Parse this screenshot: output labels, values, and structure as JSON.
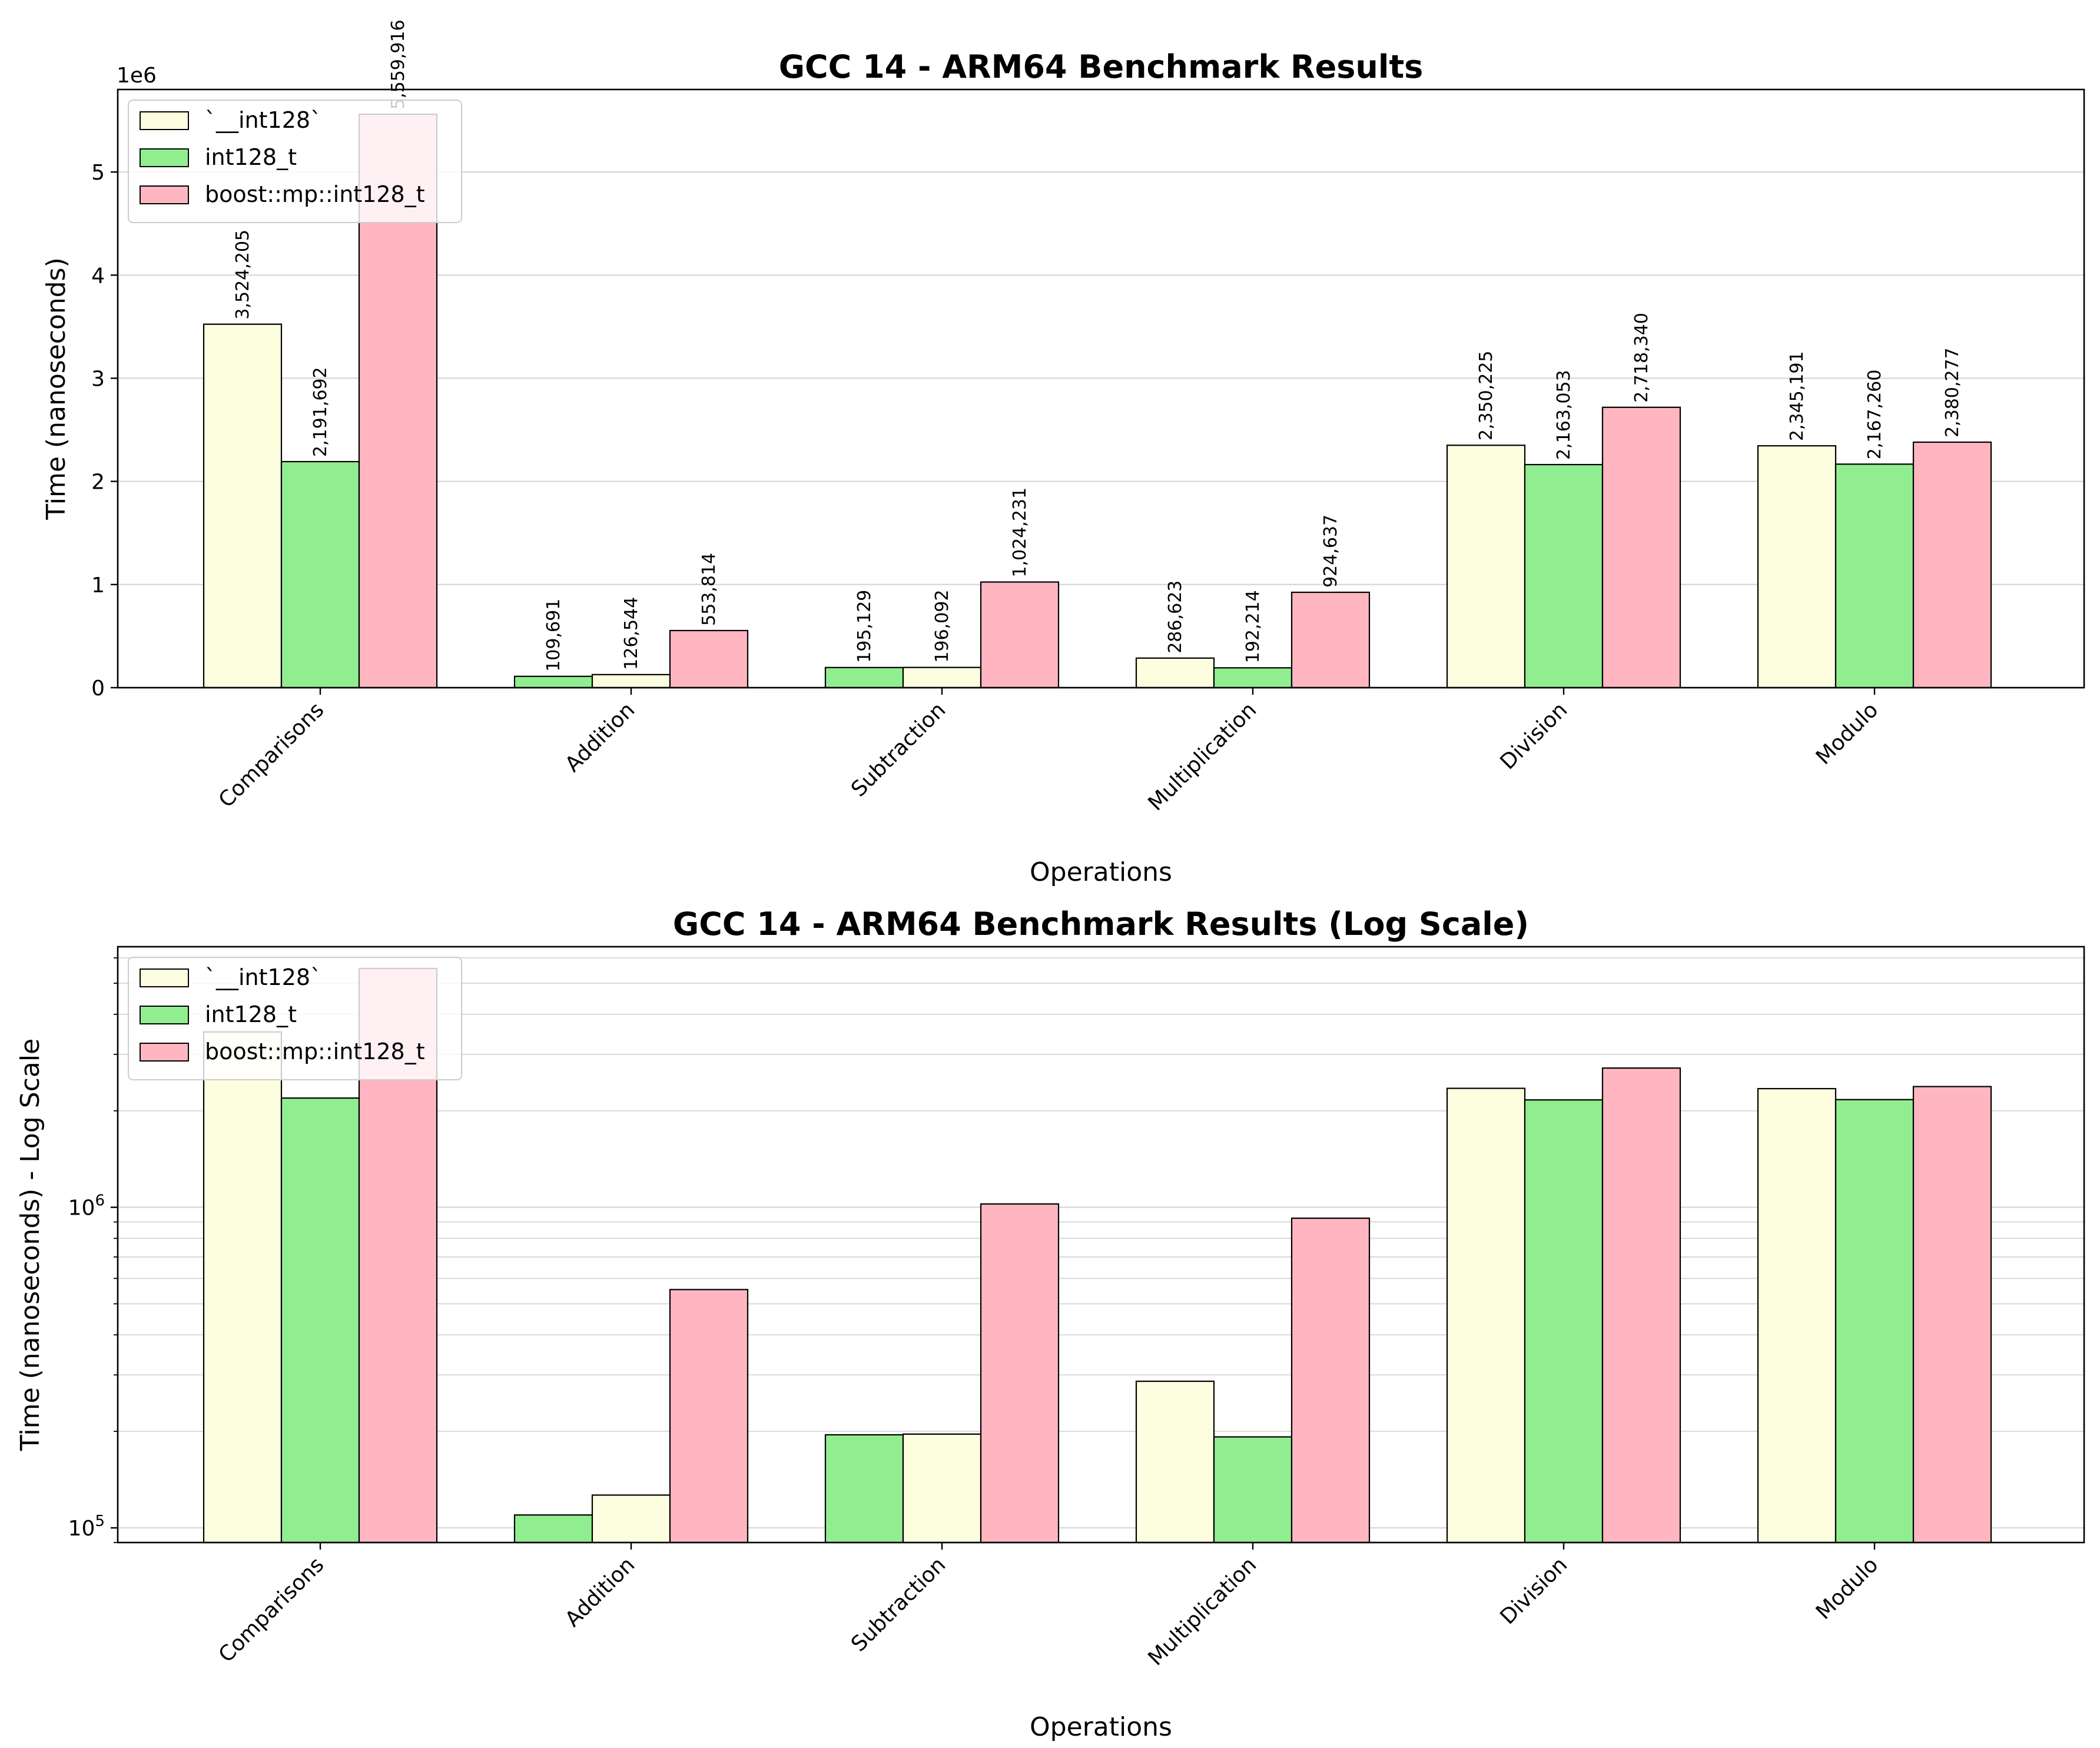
{
  "chart_data": [
    {
      "type": "bar",
      "title": "GCC 14 - ARM64 Benchmark Results",
      "xlabel": "Operations",
      "ylabel": "Time (nanoseconds)",
      "y_offset_text": "1e6",
      "yscale": "linear",
      "ylim": [
        0,
        5800000
      ],
      "yticks": [
        0,
        1000000,
        2000000,
        3000000,
        4000000,
        5000000
      ],
      "ytick_labels": [
        "0",
        "1",
        "2",
        "3",
        "4",
        "5"
      ],
      "grid": "y",
      "legend_position": "upper-left",
      "categories": [
        "Comparisons",
        "Addition",
        "Subtraction",
        "Multiplication",
        "Division",
        "Modulo"
      ],
      "series": [
        {
          "name": "`__int128`",
          "color": "#fdfde0",
          "values": [
            3524205,
            126544,
            196092,
            286623,
            2350225,
            2345191
          ]
        },
        {
          "name": "int128_t",
          "color": "#90ee90",
          "values": [
            2191692,
            109691,
            195129,
            192214,
            2163053,
            2167260
          ]
        },
        {
          "name": "boost::mp::int128_t",
          "color": "#ffb6c1",
          "values": [
            5559916,
            553814,
            1024231,
            924637,
            2718340,
            2380277
          ]
        }
      ],
      "draw_order": [
        [
          "`__int128`",
          "int128_t",
          "boost::mp::int128_t"
        ],
        [
          "int128_t",
          "`__int128`",
          "boost::mp::int128_t"
        ],
        [
          "int128_t",
          "`__int128`",
          "boost::mp::int128_t"
        ],
        [
          "`__int128`",
          "int128_t",
          "boost::mp::int128_t"
        ],
        [
          "`__int128`",
          "int128_t",
          "boost::mp::int128_t"
        ],
        [
          "`__int128`",
          "int128_t",
          "boost::mp::int128_t"
        ]
      ],
      "data_labels": [
        [
          "3,524,205",
          "2,191,692",
          "5,559,916"
        ],
        [
          "109,691",
          "126,544",
          "553,814"
        ],
        [
          "195,129",
          "196,092",
          "1,024,231"
        ],
        [
          "286,623",
          "192,214",
          "924,637"
        ],
        [
          "2,350,225",
          "2,163,053",
          "2,718,340"
        ],
        [
          "2,345,191",
          "2,167,260",
          "2,380,277"
        ]
      ]
    },
    {
      "type": "bar",
      "title": "GCC 14 - ARM64 Benchmark Results (Log Scale)",
      "xlabel": "Operations",
      "ylabel": "Time (nanoseconds) - Log Scale",
      "yscale": "log",
      "ylim": [
        90000,
        6500000
      ],
      "yticks": [
        100000,
        1000000
      ],
      "ytick_labels": [
        {
          "base": "10",
          "exp": "5"
        },
        {
          "base": "10",
          "exp": "6"
        }
      ],
      "grid": "y-major-and-minor",
      "legend_position": "upper-left",
      "categories": [
        "Comparisons",
        "Addition",
        "Subtraction",
        "Multiplication",
        "Division",
        "Modulo"
      ],
      "series": [
        {
          "name": "`__int128`",
          "color": "#fdfde0",
          "values": [
            3524205,
            126544,
            196092,
            286623,
            2350225,
            2345191
          ]
        },
        {
          "name": "int128_t",
          "color": "#90ee90",
          "values": [
            2191692,
            109691,
            195129,
            192214,
            2163053,
            2167260
          ]
        },
        {
          "name": "boost::mp::int128_t",
          "color": "#ffb6c1",
          "values": [
            5559916,
            553814,
            1024231,
            924637,
            2718340,
            2380277
          ]
        }
      ],
      "draw_order": [
        [
          "`__int128`",
          "int128_t",
          "boost::mp::int128_t"
        ],
        [
          "int128_t",
          "`__int128`",
          "boost::mp::int128_t"
        ],
        [
          "int128_t",
          "`__int128`",
          "boost::mp::int128_t"
        ],
        [
          "`__int128`",
          "int128_t",
          "boost::mp::int128_t"
        ],
        [
          "`__int128`",
          "int128_t",
          "boost::mp::int128_t"
        ],
        [
          "`__int128`",
          "int128_t",
          "boost::mp::int128_t"
        ]
      ]
    }
  ]
}
